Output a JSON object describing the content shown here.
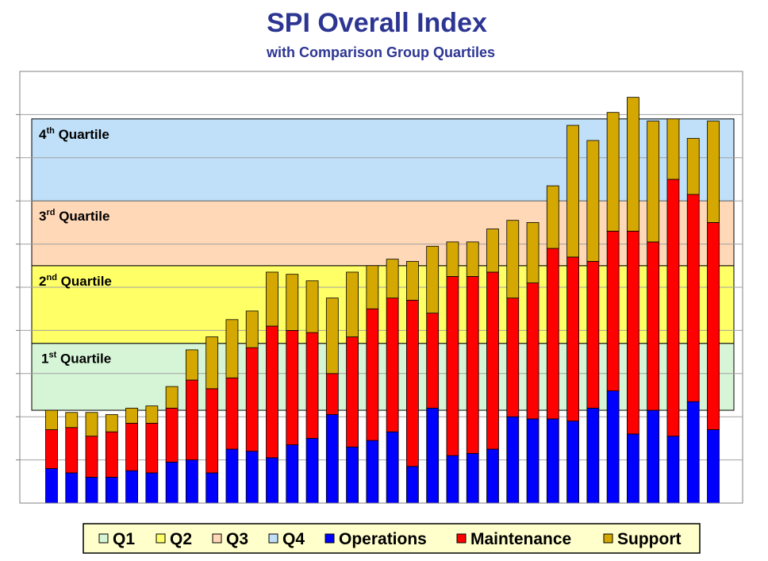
{
  "chart_data": {
    "type": "bar",
    "stacked": true,
    "title": "SPI Overall Index",
    "subtitle": "with Comparison Group Quartiles",
    "grid": true,
    "legend_position": "bottom",
    "ylim": [
      0,
      100
    ],
    "num_bars": 34,
    "series": [
      {
        "name": "Operations",
        "color": "#0000ff",
        "values": [
          8,
          7,
          6,
          6,
          7.5,
          7,
          9.5,
          10,
          7,
          12.5,
          12,
          10.5,
          13.5,
          15,
          20.5,
          13,
          14.5,
          16.5,
          8.5,
          22,
          11,
          11.5,
          12.5,
          20,
          19.5,
          19.5,
          19,
          22,
          26,
          16,
          21.5,
          15.5,
          23.5,
          17
        ]
      },
      {
        "name": "Maintenance",
        "color": "#ff0000",
        "values": [
          9,
          10.5,
          9.5,
          10.5,
          11,
          11.5,
          12.5,
          18.5,
          19.5,
          16.5,
          24,
          30.5,
          26.5,
          24.5,
          9.5,
          25.5,
          30.5,
          31,
          38.5,
          22,
          41.5,
          41,
          41,
          27.5,
          31.5,
          39.5,
          38,
          34,
          37,
          47,
          39,
          59.5,
          48,
          48
        ]
      },
      {
        "name": "Support",
        "color": "#d4a800",
        "values": [
          4.5,
          3.5,
          5.5,
          4,
          3.5,
          4,
          5,
          7,
          12,
          13.5,
          8.5,
          12.5,
          13,
          12,
          17.5,
          15,
          10,
          9,
          9,
          15.5,
          8,
          8,
          10,
          18,
          14,
          14.5,
          30.5,
          28,
          27.5,
          31,
          28,
          14,
          13,
          23.5
        ]
      }
    ],
    "bands": [
      {
        "name": "Q1",
        "label": "1st Quartile",
        "num": "1",
        "sup": "st",
        "from": 21.5,
        "to": 37,
        "color": "#d6f5d6"
      },
      {
        "name": "Q2",
        "label": "2nd Quartile",
        "num": "2",
        "sup": "nd",
        "from": 37,
        "to": 55,
        "color": "#ffff66"
      },
      {
        "name": "Q3",
        "label": "3rd Quartile",
        "num": "3",
        "sup": "rd",
        "from": 55,
        "to": 70,
        "color": "#ffd8b8"
      },
      {
        "name": "Q4",
        "label": "4th Quartile",
        "num": "4",
        "sup": "th",
        "from": 70,
        "to": 89,
        "color": "#bfe0f8"
      }
    ],
    "legend": [
      "Q1",
      "Q2",
      "Q3",
      "Q4",
      "Operations",
      "Maintenance",
      "Support"
    ]
  }
}
